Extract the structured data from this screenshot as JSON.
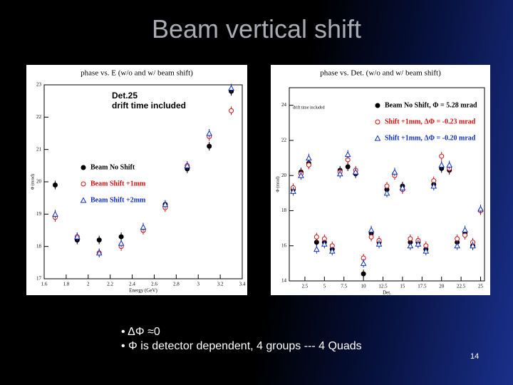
{
  "slide": {
    "title": "Beam vertical shift",
    "bullets": [
      "• ΔΦ ≈0",
      "• Φ is detector dependent, 4 groups --- 4 Quads"
    ],
    "page_number": 14
  },
  "chart_data": [
    {
      "type": "scatter",
      "title": "phase vs. E (w/o and w/ beam shift)",
      "xlabel": "Energy (GeV)",
      "ylabel": "Φ (mrad)",
      "annotations": [
        "Det.25",
        "drift time included"
      ],
      "legend": "center left",
      "x": [
        1.7,
        1.9,
        2.1,
        2.3,
        2.5,
        2.7,
        2.9,
        3.1,
        3.3
      ],
      "series": [
        {
          "name": "Beam No Shift",
          "color": "#000000",
          "marker": "circle-filled",
          "values": [
            19.9,
            18.2,
            18.2,
            18.3,
            18.5,
            19.3,
            20.4,
            21.1,
            22.8
          ]
        },
        {
          "name": "Beam Shift +1mm",
          "color": "#d01010",
          "marker": "circle-open",
          "values": [
            18.9,
            18.3,
            17.8,
            18.0,
            18.5,
            19.2,
            20.5,
            21.4,
            22.2
          ]
        },
        {
          "name": "Beam Shift +2mm",
          "color": "#1030c0",
          "marker": "triangle-open",
          "values": [
            19.0,
            18.3,
            17.8,
            18.1,
            18.6,
            19.3,
            20.5,
            21.5,
            22.9
          ]
        }
      ],
      "xlim": [
        1.6,
        3.4
      ],
      "xticks": [
        1.6,
        1.8,
        2,
        2.2,
        2.4,
        2.6,
        2.8,
        3,
        3.2,
        3.4
      ],
      "ylim": [
        17,
        23
      ],
      "yticks": [
        17,
        18,
        19,
        20,
        21,
        22,
        23
      ]
    },
    {
      "type": "scatter",
      "title": "phase vs. Det. (w/o and w/ beam shift)",
      "xlabel": "Det.",
      "ylabel": "Φ (mrad)",
      "annotations": [
        "drift time included"
      ],
      "legend": "upper right",
      "x": [
        1,
        2,
        3,
        4,
        5,
        6,
        7,
        8,
        9,
        10,
        11,
        12,
        13,
        14,
        15,
        16,
        17,
        18,
        19,
        20,
        21,
        22,
        23,
        24,
        25
      ],
      "series": [
        {
          "name": "Beam No Shift, Φ = 5.28 mrad",
          "color": "#000000",
          "marker": "circle-filled",
          "values": [
            19.2,
            20.2,
            20.7,
            16.2,
            16.2,
            15.8,
            20.3,
            20.5,
            20.1,
            14.4,
            16.7,
            16.2,
            19.2,
            20.1,
            19.4,
            16.2,
            16.2,
            15.8,
            19.5,
            20.4,
            20.3,
            16.2,
            16.7,
            16.0,
            18.0
          ]
        },
        {
          "name": "Shift +1mm, ΔΦ = -0.23 mrad",
          "color": "#d01010",
          "marker": "circle-open",
          "values": [
            19.3,
            20.1,
            20.6,
            16.5,
            16.4,
            16.0,
            20.2,
            20.9,
            20.3,
            15.3,
            16.5,
            16.3,
            19.4,
            20.0,
            19.2,
            16.4,
            16.3,
            16.0,
            19.7,
            21.1,
            20.4,
            16.4,
            16.6,
            16.2,
            18.0
          ]
        },
        {
          "name": "Shift +1mm, ΔΦ = -0.20 mrad",
          "color": "#1030c0",
          "marker": "triangle-open",
          "values": [
            19.1,
            20.0,
            21.0,
            15.8,
            16.1,
            15.7,
            20.1,
            21.2,
            20.2,
            15.0,
            16.9,
            16.1,
            19.0,
            20.2,
            19.3,
            16.0,
            16.1,
            15.7,
            19.4,
            20.6,
            20.6,
            16.0,
            16.9,
            16.0,
            18.1
          ]
        }
      ],
      "xlim": [
        0.5,
        25.5
      ],
      "xticks": [
        2.5,
        5,
        7.5,
        10,
        12.5,
        15,
        17.5,
        20,
        22.5,
        25
      ],
      "ylim": [
        14,
        25
      ],
      "yticks": [
        14,
        16,
        18,
        20,
        22,
        24
      ]
    }
  ]
}
